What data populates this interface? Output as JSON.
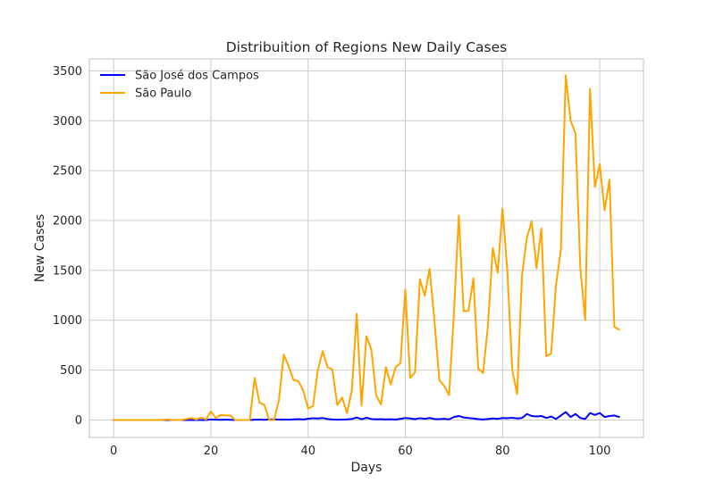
{
  "chart_data": {
    "type": "line",
    "title": "Distribuition of Regions New Daily Cases",
    "xlabel": "Days",
    "ylabel": "New Cases",
    "xlim": [
      -5,
      109
    ],
    "ylim": [
      -175,
      3620
    ],
    "xticks": [
      0,
      20,
      40,
      60,
      80,
      100
    ],
    "yticks": [
      0,
      500,
      1000,
      1500,
      2000,
      2500,
      3000,
      3500
    ],
    "grid": true,
    "legend_position": "top-left",
    "series": [
      {
        "name": "São José dos Campos",
        "color": "#0000ff",
        "x": [
          0,
          1,
          2,
          3,
          4,
          5,
          6,
          7,
          8,
          9,
          10,
          11,
          12,
          13,
          14,
          15,
          16,
          17,
          18,
          19,
          20,
          21,
          22,
          23,
          24,
          25,
          26,
          27,
          28,
          29,
          30,
          31,
          32,
          33,
          34,
          35,
          36,
          37,
          38,
          39,
          40,
          41,
          42,
          43,
          44,
          45,
          46,
          47,
          48,
          49,
          50,
          51,
          52,
          53,
          54,
          55,
          56,
          57,
          58,
          59,
          60,
          61,
          62,
          63,
          64,
          65,
          66,
          67,
          68,
          69,
          70,
          71,
          72,
          73,
          74,
          75,
          76,
          77,
          78,
          79,
          80,
          81,
          82,
          83,
          84,
          85,
          86,
          87,
          88,
          89,
          90,
          91,
          92,
          93,
          94,
          95,
          96,
          97,
          98,
          99,
          100,
          101,
          102,
          103,
          104
        ],
        "values": [
          0,
          0,
          0,
          0,
          0,
          0,
          0,
          0,
          0,
          0,
          0,
          0,
          0,
          0,
          0,
          0,
          0,
          0,
          0,
          0,
          5,
          3,
          2,
          3,
          2,
          0,
          0,
          0,
          0,
          3,
          4,
          2,
          5,
          6,
          4,
          5,
          3,
          6,
          8,
          5,
          12,
          18,
          15,
          20,
          10,
          5,
          3,
          4,
          6,
          10,
          25,
          8,
          22,
          10,
          6,
          8,
          5,
          7,
          4,
          12,
          20,
          15,
          8,
          18,
          12,
          20,
          10,
          8,
          12,
          6,
          30,
          40,
          25,
          20,
          15,
          8,
          5,
          10,
          15,
          12,
          20,
          18,
          22,
          15,
          20,
          60,
          40,
          35,
          40,
          20,
          35,
          10,
          45,
          80,
          30,
          60,
          20,
          10,
          70,
          50,
          70,
          30,
          40,
          45,
          30
        ]
      },
      {
        "name": "São Paulo",
        "color": "#ffa500",
        "x": [
          0,
          1,
          2,
          3,
          4,
          5,
          6,
          7,
          8,
          9,
          10,
          11,
          12,
          13,
          14,
          15,
          16,
          17,
          18,
          19,
          20,
          21,
          22,
          23,
          24,
          25,
          26,
          27,
          28,
          29,
          30,
          31,
          32,
          33,
          34,
          35,
          36,
          37,
          38,
          39,
          40,
          41,
          42,
          43,
          44,
          45,
          46,
          47,
          48,
          49,
          50,
          51,
          52,
          53,
          54,
          55,
          56,
          57,
          58,
          59,
          60,
          61,
          62,
          63,
          64,
          65,
          66,
          67,
          68,
          69,
          70,
          71,
          72,
          73,
          74,
          75,
          76,
          77,
          78,
          79,
          80,
          81,
          82,
          83,
          84,
          85,
          86,
          87,
          88,
          89,
          90,
          91,
          92,
          93,
          94,
          95,
          96,
          97,
          98,
          99,
          100,
          101,
          102,
          103,
          104
        ],
        "values": [
          0,
          0,
          0,
          0,
          0,
          0,
          0,
          0,
          0,
          0,
          0,
          5,
          0,
          0,
          0,
          10,
          20,
          5,
          25,
          5,
          85,
          20,
          50,
          45,
          45,
          0,
          0,
          0,
          0,
          420,
          175,
          150,
          0,
          0,
          200,
          655,
          540,
          400,
          390,
          295,
          115,
          140,
          500,
          690,
          530,
          505,
          150,
          225,
          70,
          295,
          1065,
          145,
          840,
          710,
          250,
          155,
          530,
          355,
          530,
          570,
          1305,
          420,
          480,
          1410,
          1245,
          1515,
          990,
          400,
          340,
          250,
          1070,
          2050,
          1090,
          1095,
          1420,
          515,
          470,
          945,
          1725,
          1475,
          2120,
          1485,
          500,
          260,
          1450,
          1825,
          1990,
          1520,
          1920,
          640,
          665,
          1355,
          1705,
          3455,
          3000,
          2875,
          1530,
          1000,
          3320,
          2335,
          2565,
          2100,
          2410,
          935,
          905
        ]
      }
    ]
  }
}
